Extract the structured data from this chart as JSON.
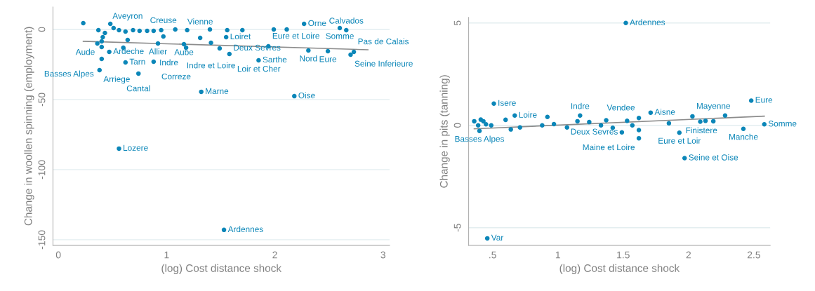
{
  "chart_data": [
    {
      "type": "scatter",
      "xlabel": "(log) Cost distance shock",
      "ylabel": "Change in woollen spinning (employment)",
      "xlim": [
        -0.05,
        3.06
      ],
      "ylim": [
        -154,
        16
      ],
      "xticks": [
        0,
        1,
        2,
        3
      ],
      "yticks": [
        0,
        -50,
        -100,
        -150
      ],
      "grid": "y",
      "marker": "circle",
      "series": [
        {
          "color": "#0b86b8",
          "x": [
            0.23,
            2.27,
            2.6,
            2.66,
            0.41,
            0.4,
            0.64,
            0.97,
            1.31,
            1.55,
            1.41,
            0.92,
            1.16,
            1.18,
            1.49,
            1.58,
            1.85,
            1.94,
            2.31,
            2.49,
            2.73,
            2.7,
            0.36,
            0.4,
            0.6,
            0.47,
            0.4,
            0.62,
            0.88,
            0.38,
            0.74,
            1.32,
            2.18,
            0.56,
            1.53,
            0.37,
            0.43,
            0.48,
            0.51,
            0.56,
            0.62,
            0.69,
            0.75,
            0.82,
            0.88,
            0.95,
            1.08,
            1.19,
            1.4,
            1.56,
            1.7,
            1.99,
            2.11
          ],
          "values": [
            4.5,
            4,
            1,
            -0.5,
            -5.5,
            -8.5,
            -7.5,
            -5,
            -6,
            -5.5,
            -9.5,
            -10,
            -10.5,
            -13,
            -13.5,
            -17.5,
            -22,
            -12,
            -15,
            -15.5,
            -16,
            -18,
            -10,
            -12.5,
            -13,
            -16,
            -21,
            -23.5,
            -23,
            -29,
            -31.5,
            -44.5,
            -47.6,
            -85,
            -143,
            -0.5,
            -2.5,
            4,
            1,
            -0.5,
            -1.5,
            -0.5,
            -1,
            -1,
            -1,
            -0.5,
            0,
            -0.5,
            0,
            -0.5,
            -0.5,
            0,
            0
          ]
        },
        {
          "type": "line",
          "marker": "none",
          "color": "#8c8c8c",
          "x": [
            0.23,
            2.86
          ],
          "values": [
            -8.5,
            -14.5
          ]
        }
      ],
      "annotations": [
        {
          "text": "Orne",
          "x": 2.27,
          "y": 4
        },
        {
          "text": "Somme",
          "x": 2.6,
          "y": 1
        },
        {
          "text": "Calvados",
          "x": 2.66,
          "y": -0.5
        },
        {
          "text": "Aude",
          "x": 0.41,
          "y": -5.5
        },
        {
          "text": "Aveyron",
          "x": 0.64,
          "y": -7.5
        },
        {
          "text": "Creuse",
          "x": 0.97,
          "y": -5
        },
        {
          "text": "Vienne",
          "x": 1.31,
          "y": -6
        },
        {
          "text": "Loiret",
          "x": 1.55,
          "y": -5.5
        },
        {
          "text": "Indre et Loire",
          "x": 1.41,
          "y": -9.5
        },
        {
          "text": "Allier",
          "x": 0.92,
          "y": -10
        },
        {
          "text": "Aube",
          "x": 1.16,
          "y": -10.5
        },
        {
          "text": "Indre",
          "x": 1.18,
          "y": -13
        },
        {
          "text": "Deux Sevres",
          "x": 1.49,
          "y": -13.5
        },
        {
          "text": "Loir et Cher",
          "x": 1.58,
          "y": -17.5
        },
        {
          "text": "Sarthe",
          "x": 1.85,
          "y": -22
        },
        {
          "text": "Eure et Loire",
          "x": 1.94,
          "y": -12
        },
        {
          "text": "Nord",
          "x": 2.31,
          "y": -15
        },
        {
          "text": "Eure",
          "x": 2.49,
          "y": -15.5
        },
        {
          "text": "Pas de Calais",
          "x": 2.73,
          "y": -16
        },
        {
          "text": "Seine Inferieure",
          "x": 2.7,
          "y": -18
        },
        {
          "text": "Ardeche",
          "x": 0.47,
          "y": -16
        },
        {
          "text": "Basses Alpes",
          "x": 0.4,
          "y": -21
        },
        {
          "text": "Tarn",
          "x": 0.62,
          "y": -23.5
        },
        {
          "text": "Correze",
          "x": 0.88,
          "y": -23
        },
        {
          "text": "Arriege",
          "x": 0.38,
          "y": -29
        },
        {
          "text": "Cantal",
          "x": 0.74,
          "y": -31.5
        },
        {
          "text": "Marne",
          "x": 1.32,
          "y": -44.5
        },
        {
          "text": "Oise",
          "x": 2.18,
          "y": -47.6
        },
        {
          "text": "Lozere",
          "x": 0.56,
          "y": -85
        },
        {
          "text": "Ardennes",
          "x": 1.53,
          "y": -143
        }
      ]
    },
    {
      "type": "scatter",
      "xlabel": "(log) Cost distance shock",
      "ylabel": "Change in pits (tanning)",
      "xlim": [
        0.317,
        2.625
      ],
      "ylim": [
        -5.86,
        5.27
      ],
      "xticks": [
        {
          "value": 0.5,
          "label": ".5"
        },
        1,
        1.5,
        2,
        2.5
      ],
      "yticks": [
        5,
        0,
        -5
      ],
      "grid": "y",
      "marker": "circle",
      "series": [
        {
          "color": "#0b86b8",
          "x": [
            1.52,
            0.51,
            0.67,
            1.17,
            0.92,
            1.71,
            1.62,
            2.03,
            2.28,
            2.48,
            2.58,
            2.42,
            1.93,
            1.62,
            1.97,
            1.49,
            0.46,
            0.4,
            0.36,
            0.39,
            0.41,
            0.43,
            0.45,
            0.49,
            0.6,
            0.64,
            0.71,
            0.88,
            0.97,
            1.07,
            1.15,
            1.24,
            1.33,
            1.37,
            1.42,
            1.53,
            1.57,
            1.62,
            1.85,
            2.09,
            2.13,
            2.19
          ],
          "values": [
            5.0,
            1.06,
            0.48,
            0.48,
            0.41,
            0.62,
            0.36,
            0.44,
            0.48,
            1.21,
            0.05,
            -0.17,
            -0.36,
            -0.63,
            -1.6,
            -0.34,
            -5.52,
            -0.27,
            0.2,
            0,
            0.28,
            0.2,
            0.05,
            0,
            0.27,
            -0.2,
            -0.1,
            0,
            0.06,
            -0.1,
            0.2,
            0.16,
            0,
            0.25,
            -0.12,
            0.22,
            0,
            -0.23,
            0.1,
            0.18,
            0.22,
            0.2
          ]
        },
        {
          "type": "line",
          "marker": "none",
          "color": "#8c8c8c",
          "x": [
            0.36,
            2.58
          ],
          "values": [
            -0.17,
            0.45
          ]
        }
      ],
      "annotations": [
        {
          "text": "Ardennes",
          "x": 1.52,
          "y": 5.0
        },
        {
          "text": "Isere",
          "x": 0.51,
          "y": 1.06
        },
        {
          "text": "Loire",
          "x": 0.67,
          "y": 0.48
        },
        {
          "text": "Indre",
          "x": 1.17,
          "y": 0.48
        },
        {
          "text": "Aisne",
          "x": 1.71,
          "y": 0.62
        },
        {
          "text": "Vendee",
          "x": 1.62,
          "y": 0.36
        },
        {
          "text": "Mayenne",
          "x": 2.03,
          "y": 0.44
        },
        {
          "text": "Finistere",
          "x": 2.28,
          "y": 0.48
        },
        {
          "text": "Eure",
          "x": 2.48,
          "y": 1.21
        },
        {
          "text": "Somme",
          "x": 2.58,
          "y": 0.05
        },
        {
          "text": "Manche",
          "x": 2.42,
          "y": -0.17
        },
        {
          "text": "Eure et Loir",
          "x": 1.93,
          "y": -0.36
        },
        {
          "text": "Maine et Loire",
          "x": 1.62,
          "y": -0.63
        },
        {
          "text": "Seine et Oise",
          "x": 1.97,
          "y": -1.6
        },
        {
          "text": "Deux Sevres",
          "x": 1.49,
          "y": -0.34
        },
        {
          "text": "Var",
          "x": 0.46,
          "y": -5.52
        },
        {
          "text": "Basses Alpes",
          "x": 0.4,
          "y": -0.27
        }
      ]
    }
  ]
}
